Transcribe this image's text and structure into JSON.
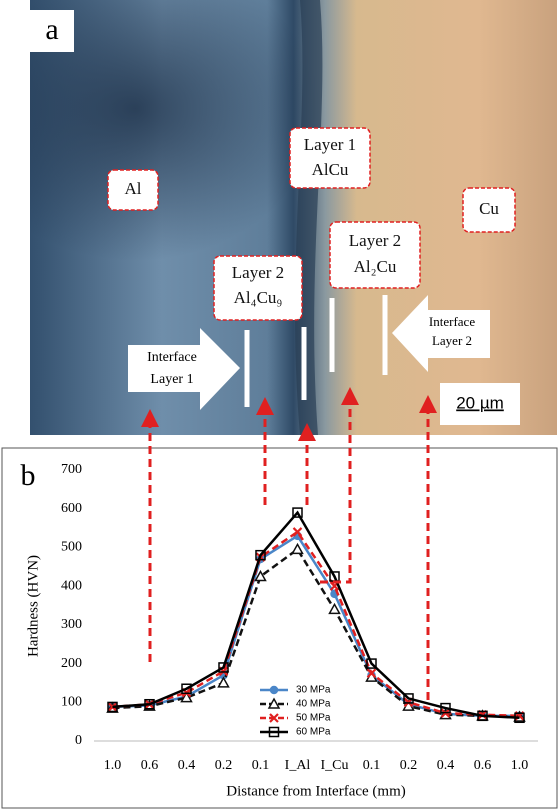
{
  "panel_a": {
    "label": "a",
    "scale_bar": "20 µm",
    "callouts": [
      {
        "lines": [
          "Al"
        ]
      },
      {
        "lines": [
          "Layer 1",
          "AlCu"
        ]
      },
      {
        "lines": [
          "Cu"
        ]
      },
      {
        "lines": [
          "Layer 2",
          "Al₂Cu"
        ]
      },
      {
        "lines": [
          "Layer 2",
          "Al₄Cu₉"
        ]
      }
    ],
    "arrows": [
      {
        "lines": [
          "Interface",
          "Layer 1"
        ]
      },
      {
        "lines": [
          "Interface",
          "Layer 2"
        ]
      }
    ]
  },
  "chart_data": {
    "type": "line",
    "panel_label": "b",
    "y_label": "Hardness (HVN)",
    "x_label": "Distance from Interface (mm)",
    "categories": [
      "1.0",
      "0.6",
      "0.4",
      "0.2",
      "0.1",
      "I_Al",
      "I_Cu",
      "0.1",
      "0.2",
      "0.4",
      "0.6",
      "1.0"
    ],
    "series": [
      {
        "name": "30 MPa",
        "color": "#4a86c8",
        "dash": false,
        "marker": "circle",
        "values": [
          88,
          92,
          115,
          170,
          470,
          530,
          380,
          170,
          95,
          70,
          65,
          65
        ]
      },
      {
        "name": "40 MPa",
        "color": "#111111",
        "dash": true,
        "marker": "triangle",
        "values": [
          85,
          90,
          112,
          150,
          425,
          495,
          340,
          165,
          90,
          68,
          65,
          62
        ]
      },
      {
        "name": "50 MPa",
        "color": "#e02020",
        "dash": true,
        "marker": "x",
        "values": [
          88,
          95,
          125,
          180,
          475,
          540,
          400,
          175,
          100,
          72,
          68,
          65
        ]
      },
      {
        "name": "60 MPa",
        "color": "#000000",
        "dash": false,
        "marker": "square",
        "values": [
          88,
          95,
          135,
          190,
          480,
          590,
          425,
          200,
          110,
          85,
          65,
          60
        ]
      }
    ],
    "ylim": [
      0,
      700
    ],
    "yticks": [
      0,
      100,
      200,
      300,
      400,
      500,
      600,
      700
    ],
    "grid": false,
    "legend": "lower center"
  }
}
